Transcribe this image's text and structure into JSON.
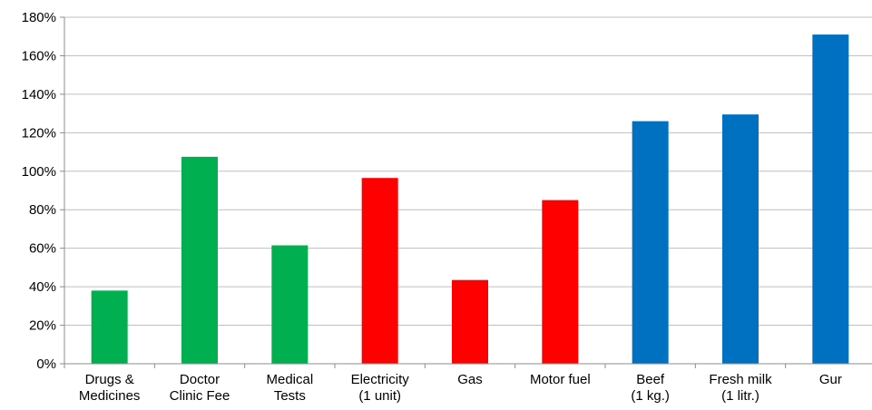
{
  "chart_data": {
    "type": "bar",
    "categories": [
      [
        "Drugs &",
        "Medicines"
      ],
      [
        "Doctor",
        "Clinic Fee"
      ],
      [
        "Medical",
        "Tests"
      ],
      [
        "Electricity",
        "(1 unit)"
      ],
      [
        "Gas"
      ],
      [
        "Motor fuel"
      ],
      [
        "Beef",
        "(1 kg.)"
      ],
      [
        "Fresh milk",
        "(1 litr.)"
      ],
      [
        "Gur"
      ]
    ],
    "values": [
      38,
      107.5,
      61.5,
      96.5,
      43.5,
      85,
      126,
      129.5,
      171
    ],
    "colors": [
      "#00B050",
      "#00B050",
      "#00B050",
      "#FF0000",
      "#FF0000",
      "#FF0000",
      "#0070C0",
      "#0070C0",
      "#0070C0"
    ],
    "ylim": [
      0,
      180
    ],
    "yticks": [
      0,
      20,
      40,
      60,
      80,
      100,
      120,
      140,
      160,
      180
    ],
    "ytick_labels": [
      "0%",
      "20%",
      "40%",
      "60%",
      "80%",
      "100%",
      "120%",
      "140%",
      "160%",
      "180%"
    ],
    "grid": true,
    "title": "",
    "xlabel": "",
    "ylabel": ""
  }
}
